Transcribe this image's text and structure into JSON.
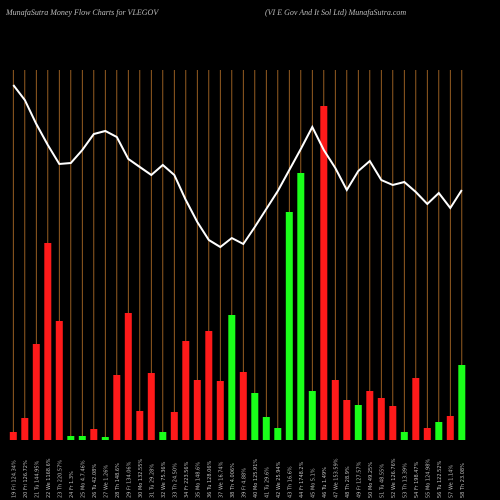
{
  "chart_data": {
    "type": "bar",
    "title": "MunafaSutra  Money Flow  Charts for VLEGOV",
    "subtitle": "(VI E Gov   And It Sol Ltd) MunafaSutra.com",
    "categories": [
      "19 Fri 124.34%",
      "20 Fri 126.72%",
      "21 Tu 144.95%",
      "22 We 1168.6%",
      "23 Th 220.57%",
      "24 Fr 1.3%",
      "25 Mo 4.7.46%",
      "26 Tu 42.08%",
      "27 We 1.26%",
      "28 Th 148.6%",
      "29 Fr 134.06%",
      "30 Mo 132.55%",
      "31 Tu 29.28%",
      "32 We 75.36%",
      "33 Th 24.50%",
      "34 Fr 223.56%",
      "35 Mo 148.6%",
      "36 Tu 128.06%",
      "37 We 16.74%",
      "38 Th 4.006%",
      "39 Fr 4.88%",
      "40 Mo 125.91%",
      "41 Tu 29.6%",
      "42 We 25.94%",
      "43 Th 16.6%",
      "44 Fr 1748.2%",
      "45 Mo 5.1%",
      "46 Tu 1.49%",
      "47 We 153.59%",
      "48 Th 28.9%",
      "49 Fr 127.57%",
      "50 Mo 49.25%",
      "51 Tu 48.55%",
      "52 We 126.76%",
      "53 Th 13.39%",
      "54 Fr 198.47%",
      "55 Mo 124.98%",
      "56 Tu 122.52%",
      "57 We 1.14%",
      "58 Th 23.08%"
    ],
    "series": [
      {
        "name": "Money Flow",
        "values": [
          8,
          22,
          96,
          197,
          119,
          4,
          4,
          11,
          3,
          65,
          127,
          29,
          67,
          8,
          28,
          99,
          60,
          109,
          59,
          125,
          68,
          47,
          23,
          12,
          228,
          267,
          49,
          334,
          60,
          40,
          35,
          49,
          42,
          34,
          8,
          62,
          12,
          18,
          24,
          75
        ],
        "colors": [
          "#ff1a1a",
          "#ff1a1a",
          "#ff1a1a",
          "#ff1a1a",
          "#ff1a1a",
          "#1aff1a",
          "#1aff1a",
          "#ff1a1a",
          "#1aff1a",
          "#ff1a1a",
          "#ff1a1a",
          "#ff1a1a",
          "#ff1a1a",
          "#1aff1a",
          "#ff1a1a",
          "#ff1a1a",
          "#ff1a1a",
          "#ff1a1a",
          "#ff1a1a",
          "#1aff1a",
          "#ff1a1a",
          "#1aff1a",
          "#1aff1a",
          "#1aff1a",
          "#1aff1a",
          "#1aff1a",
          "#1aff1a",
          "#ff1a1a",
          "#ff1a1a",
          "#ff1a1a",
          "#1aff1a",
          "#ff1a1a",
          "#ff1a1a",
          "#ff1a1a",
          "#1aff1a",
          "#ff1a1a",
          "#ff1a1a",
          "#1aff1a",
          "#ff1a1a",
          "#1aff1a"
        ]
      },
      {
        "name": "Price",
        "type": "line",
        "color": "#ffffff",
        "values": [
          355,
          340,
          316,
          295,
          276,
          277,
          290,
          306,
          309,
          303,
          281,
          273,
          265,
          275,
          265,
          240,
          218,
          200,
          193,
          202,
          196,
          213,
          231,
          249,
          270,
          291,
          313,
          290,
          272,
          250,
          269,
          279,
          260,
          255,
          258,
          248,
          236,
          247,
          232,
          250
        ]
      }
    ],
    "ylim": [
      0,
      360
    ],
    "grid_color": "#b8732a"
  }
}
